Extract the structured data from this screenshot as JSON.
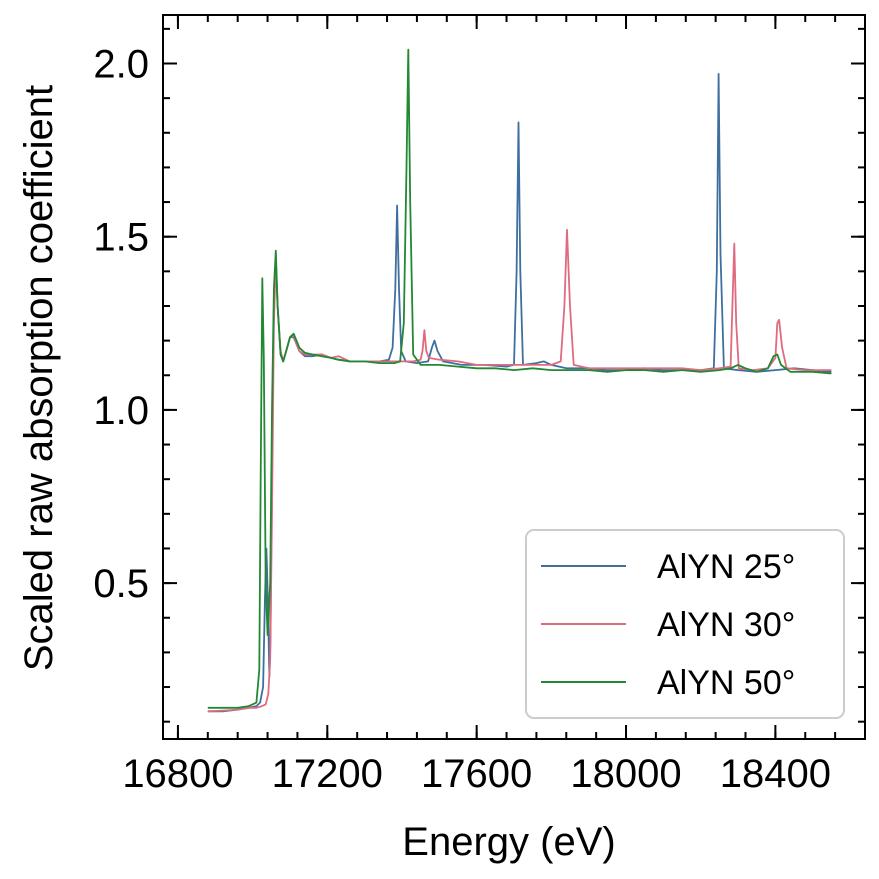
{
  "chart_data": {
    "type": "line",
    "xlabel": "Energy (eV)",
    "ylabel": "Scaled raw absorption coefficient",
    "xlim": [
      16760,
      18640
    ],
    "ylim": [
      0.05,
      2.14
    ],
    "xticks": [
      16800,
      17200,
      17600,
      18000,
      18400
    ],
    "xtick_labels": [
      "16800",
      "17200",
      "17600",
      "18000",
      "18400"
    ],
    "yticks": [
      0.5,
      1.0,
      1.5,
      2.0
    ],
    "ytick_labels": [
      "0.5",
      "1.0",
      "1.5",
      "2.0"
    ],
    "x_minor_step": 80,
    "y_minor_step": 0.1,
    "grid": false,
    "legend_position": "lower-right",
    "series": [
      {
        "name": "AlYN 25°",
        "color": "#3f6f9f",
        "points": [
          [
            16880,
            0.13
          ],
          [
            16920,
            0.13
          ],
          [
            16960,
            0.135
          ],
          [
            16990,
            0.14
          ],
          [
            17010,
            0.145
          ],
          [
            17020,
            0.155
          ],
          [
            17028,
            0.2
          ],
          [
            17033,
            0.45
          ],
          [
            17037,
            0.6
          ],
          [
            17041,
            0.45
          ],
          [
            17045,
            0.23
          ],
          [
            17048,
            0.34
          ],
          [
            17052,
            0.9
          ],
          [
            17057,
            1.3
          ],
          [
            17062,
            1.44
          ],
          [
            17067,
            1.3
          ],
          [
            17075,
            1.16
          ],
          [
            17082,
            1.14
          ],
          [
            17090,
            1.17
          ],
          [
            17100,
            1.21
          ],
          [
            17110,
            1.21
          ],
          [
            17125,
            1.17
          ],
          [
            17140,
            1.155
          ],
          [
            17160,
            1.155
          ],
          [
            17185,
            1.16
          ],
          [
            17210,
            1.15
          ],
          [
            17230,
            1.145
          ],
          [
            17260,
            1.14
          ],
          [
            17300,
            1.14
          ],
          [
            17340,
            1.14
          ],
          [
            17365,
            1.145
          ],
          [
            17375,
            1.18
          ],
          [
            17382,
            1.35
          ],
          [
            17387,
            1.59
          ],
          [
            17392,
            1.35
          ],
          [
            17398,
            1.17
          ],
          [
            17410,
            1.14
          ],
          [
            17440,
            1.135
          ],
          [
            17470,
            1.14
          ],
          [
            17480,
            1.18
          ],
          [
            17487,
            1.2
          ],
          [
            17495,
            1.17
          ],
          [
            17510,
            1.14
          ],
          [
            17560,
            1.13
          ],
          [
            17620,
            1.13
          ],
          [
            17680,
            1.125
          ],
          [
            17700,
            1.13
          ],
          [
            17707,
            1.4
          ],
          [
            17712,
            1.83
          ],
          [
            17717,
            1.4
          ],
          [
            17724,
            1.13
          ],
          [
            17760,
            1.135
          ],
          [
            17780,
            1.14
          ],
          [
            17800,
            1.13
          ],
          [
            17840,
            1.12
          ],
          [
            17900,
            1.12
          ],
          [
            17950,
            1.115
          ],
          [
            18000,
            1.115
          ],
          [
            18050,
            1.12
          ],
          [
            18100,
            1.115
          ],
          [
            18150,
            1.115
          ],
          [
            18200,
            1.115
          ],
          [
            18235,
            1.12
          ],
          [
            18243,
            1.4
          ],
          [
            18248,
            1.97
          ],
          [
            18253,
            1.45
          ],
          [
            18262,
            1.12
          ],
          [
            18300,
            1.115
          ],
          [
            18350,
            1.11
          ],
          [
            18400,
            1.115
          ],
          [
            18450,
            1.12
          ],
          [
            18500,
            1.115
          ],
          [
            18550,
            1.11
          ]
        ]
      },
      {
        "name": "AlYN 30°",
        "color": "#e06a7f",
        "points": [
          [
            16880,
            0.13
          ],
          [
            16920,
            0.132
          ],
          [
            16960,
            0.135
          ],
          [
            16990,
            0.14
          ],
          [
            17010,
            0.14
          ],
          [
            17025,
            0.145
          ],
          [
            17035,
            0.15
          ],
          [
            17042,
            0.18
          ],
          [
            17047,
            0.28
          ],
          [
            17052,
            0.7
          ],
          [
            17057,
            1.25
          ],
          [
            17062,
            1.43
          ],
          [
            17067,
            1.3
          ],
          [
            17075,
            1.17
          ],
          [
            17082,
            1.14
          ],
          [
            17090,
            1.17
          ],
          [
            17100,
            1.21
          ],
          [
            17110,
            1.215
          ],
          [
            17125,
            1.17
          ],
          [
            17140,
            1.16
          ],
          [
            17160,
            1.16
          ],
          [
            17185,
            1.16
          ],
          [
            17210,
            1.15
          ],
          [
            17230,
            1.155
          ],
          [
            17260,
            1.14
          ],
          [
            17300,
            1.14
          ],
          [
            17340,
            1.14
          ],
          [
            17390,
            1.14
          ],
          [
            17430,
            1.14
          ],
          [
            17450,
            1.145
          ],
          [
            17455,
            1.17
          ],
          [
            17460,
            1.23
          ],
          [
            17465,
            1.17
          ],
          [
            17472,
            1.15
          ],
          [
            17500,
            1.145
          ],
          [
            17550,
            1.14
          ],
          [
            17600,
            1.13
          ],
          [
            17650,
            1.13
          ],
          [
            17700,
            1.13
          ],
          [
            17750,
            1.13
          ],
          [
            17800,
            1.13
          ],
          [
            17825,
            1.14
          ],
          [
            17835,
            1.3
          ],
          [
            17842,
            1.52
          ],
          [
            17850,
            1.3
          ],
          [
            17860,
            1.13
          ],
          [
            17900,
            1.12
          ],
          [
            17950,
            1.12
          ],
          [
            18000,
            1.12
          ],
          [
            18050,
            1.12
          ],
          [
            18100,
            1.12
          ],
          [
            18150,
            1.12
          ],
          [
            18200,
            1.115
          ],
          [
            18250,
            1.12
          ],
          [
            18280,
            1.125
          ],
          [
            18285,
            1.3
          ],
          [
            18290,
            1.48
          ],
          [
            18295,
            1.25
          ],
          [
            18302,
            1.12
          ],
          [
            18340,
            1.115
          ],
          [
            18380,
            1.12
          ],
          [
            18400,
            1.15
          ],
          [
            18405,
            1.25
          ],
          [
            18410,
            1.26
          ],
          [
            18418,
            1.18
          ],
          [
            18430,
            1.12
          ],
          [
            18480,
            1.115
          ],
          [
            18550,
            1.115
          ]
        ]
      },
      {
        "name": "AlYN 50°",
        "color": "#228833",
        "points": [
          [
            16880,
            0.14
          ],
          [
            16920,
            0.14
          ],
          [
            16960,
            0.14
          ],
          [
            16990,
            0.145
          ],
          [
            17010,
            0.155
          ],
          [
            17018,
            0.25
          ],
          [
            17022,
            0.85
          ],
          [
            17026,
            1.38
          ],
          [
            17030,
            1.15
          ],
          [
            17035,
            0.5
          ],
          [
            17040,
            0.35
          ],
          [
            17047,
            0.5
          ],
          [
            17052,
            1.0
          ],
          [
            17057,
            1.35
          ],
          [
            17062,
            1.46
          ],
          [
            17067,
            1.3
          ],
          [
            17075,
            1.16
          ],
          [
            17082,
            1.14
          ],
          [
            17090,
            1.17
          ],
          [
            17100,
            1.21
          ],
          [
            17110,
            1.22
          ],
          [
            17125,
            1.18
          ],
          [
            17140,
            1.165
          ],
          [
            17160,
            1.16
          ],
          [
            17185,
            1.155
          ],
          [
            17210,
            1.15
          ],
          [
            17230,
            1.145
          ],
          [
            17260,
            1.14
          ],
          [
            17300,
            1.14
          ],
          [
            17340,
            1.135
          ],
          [
            17380,
            1.135
          ],
          [
            17395,
            1.14
          ],
          [
            17405,
            1.25
          ],
          [
            17412,
            1.7
          ],
          [
            17417,
            2.04
          ],
          [
            17422,
            1.6
          ],
          [
            17430,
            1.16
          ],
          [
            17450,
            1.13
          ],
          [
            17500,
            1.13
          ],
          [
            17550,
            1.125
          ],
          [
            17600,
            1.12
          ],
          [
            17650,
            1.12
          ],
          [
            17700,
            1.115
          ],
          [
            17750,
            1.12
          ],
          [
            17800,
            1.115
          ],
          [
            17850,
            1.115
          ],
          [
            17900,
            1.115
          ],
          [
            17950,
            1.11
          ],
          [
            18000,
            1.115
          ],
          [
            18050,
            1.115
          ],
          [
            18100,
            1.11
          ],
          [
            18150,
            1.115
          ],
          [
            18200,
            1.11
          ],
          [
            18250,
            1.115
          ],
          [
            18280,
            1.12
          ],
          [
            18300,
            1.13
          ],
          [
            18320,
            1.12
          ],
          [
            18350,
            1.11
          ],
          [
            18380,
            1.12
          ],
          [
            18395,
            1.155
          ],
          [
            18405,
            1.16
          ],
          [
            18415,
            1.13
          ],
          [
            18440,
            1.11
          ],
          [
            18500,
            1.11
          ],
          [
            18550,
            1.105
          ]
        ]
      }
    ]
  }
}
